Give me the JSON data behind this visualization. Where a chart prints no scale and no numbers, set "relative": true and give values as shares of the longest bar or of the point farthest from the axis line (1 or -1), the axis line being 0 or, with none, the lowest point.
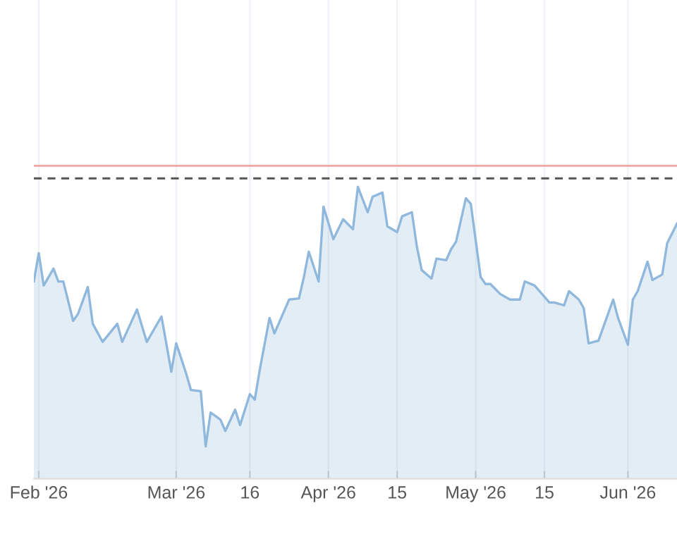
{
  "chart_data": {
    "type": "area",
    "relative": true,
    "grid": "x",
    "x": [
      "2026-01-31",
      "2026-02-01",
      "2026-02-02",
      "2026-02-04",
      "2026-02-05",
      "2026-02-06",
      "2026-02-08",
      "2026-02-09",
      "2026-02-11",
      "2026-02-12",
      "2026-02-14",
      "2026-02-17",
      "2026-02-18",
      "2026-02-21",
      "2026-02-23",
      "2026-02-26",
      "2026-02-28",
      "2026-03-01",
      "2026-03-03",
      "2026-03-04",
      "2026-03-06",
      "2026-03-07",
      "2026-03-08",
      "2026-03-10",
      "2026-03-11",
      "2026-03-13",
      "2026-03-14",
      "2026-03-16",
      "2026-03-17",
      "2026-03-18",
      "2026-03-20",
      "2026-03-21",
      "2026-03-24",
      "2026-03-26",
      "2026-03-27",
      "2026-03-28",
      "2026-03-30",
      "2026-03-31",
      "2026-04-02",
      "2026-04-04",
      "2026-04-06",
      "2026-04-07",
      "2026-04-09",
      "2026-04-10",
      "2026-04-12",
      "2026-04-13",
      "2026-04-15",
      "2026-04-16",
      "2026-04-18",
      "2026-04-19",
      "2026-04-20",
      "2026-04-22",
      "2026-04-23",
      "2026-04-25",
      "2026-04-26",
      "2026-04-27",
      "2026-04-29",
      "2026-04-30",
      "2026-05-02",
      "2026-05-03",
      "2026-05-04",
      "2026-05-06",
      "2026-05-08",
      "2026-05-10",
      "2026-05-11",
      "2026-05-13",
      "2026-05-16",
      "2026-05-17",
      "2026-05-19",
      "2026-05-20",
      "2026-05-22",
      "2026-05-23",
      "2026-05-24",
      "2026-05-26",
      "2026-05-29",
      "2026-05-30",
      "2026-06-01",
      "2026-06-02",
      "2026-06-03",
      "2026-06-05",
      "2026-06-06",
      "2026-06-08",
      "2026-06-09",
      "2026-06-11"
    ],
    "series": [
      {
        "color": "#8fb8dc",
        "values": [
          0.676,
          0.773,
          0.662,
          0.72,
          0.676,
          0.676,
          0.541,
          0.565,
          0.657,
          0.531,
          0.469,
          0.531,
          0.469,
          0.58,
          0.469,
          0.556,
          0.367,
          0.464,
          0.362,
          0.304,
          0.3,
          0.111,
          0.227,
          0.203,
          0.164,
          0.237,
          0.184,
          0.29,
          0.271,
          0.372,
          0.551,
          0.498,
          0.614,
          0.618,
          0.691,
          0.778,
          0.676,
          0.932,
          0.821,
          0.889,
          0.855,
          1.0,
          0.913,
          0.966,
          0.981,
          0.865,
          0.845,
          0.899,
          0.913,
          0.797,
          0.715,
          0.686,
          0.754,
          0.749,
          0.787,
          0.812,
          0.961,
          0.942,
          0.691,
          0.667,
          0.667,
          0.633,
          0.614,
          0.614,
          0.676,
          0.662,
          0.604,
          0.604,
          0.594,
          0.643,
          0.614,
          0.585,
          0.464,
          0.473,
          0.614,
          0.551,
          0.459,
          0.614,
          0.643,
          0.744,
          0.681,
          0.7,
          0.807,
          0.874
        ]
      }
    ],
    "xlim": [
      "2026-01-31",
      "2026-06-11"
    ],
    "xticks": [
      {
        "value": "2026-02-01",
        "label": "Feb '26"
      },
      {
        "value": "2026-03-01",
        "label": "Mar '26"
      },
      {
        "value": "2026-03-16",
        "label": "16"
      },
      {
        "value": "2026-04-01",
        "label": "Apr '26"
      },
      {
        "value": "2026-04-15",
        "label": "15"
      },
      {
        "value": "2026-05-01",
        "label": "May '26"
      },
      {
        "value": "2026-05-15",
        "label": "15"
      },
      {
        "value": "2026-06-01",
        "label": "Jun '26"
      }
    ],
    "ref_lines": [
      {
        "axis": "y",
        "value": 1.072,
        "color": "#f4a6a6",
        "line_style": "solid"
      },
      {
        "axis": "y",
        "value": 1.029,
        "color": "#555555",
        "line_style": "dashed"
      }
    ]
  }
}
